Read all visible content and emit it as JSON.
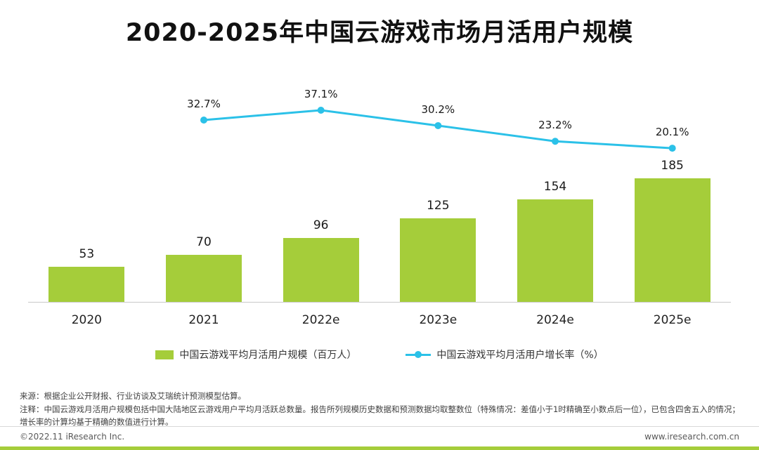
{
  "title": "2020-2025年中国云游戏市场月活用户规模",
  "chart_data": {
    "type": "bar+line",
    "categories": [
      "2020",
      "2021",
      "2022e",
      "2023e",
      "2024e",
      "2025e"
    ],
    "series": [
      {
        "name": "中国云游戏平均月活用户规模（百万人）",
        "type": "bar",
        "values": [
          53,
          70,
          96,
          125,
          154,
          185
        ],
        "color": "#a5cd3a"
      },
      {
        "name": "中国云游戏平均月活用户增长率（%）",
        "type": "line",
        "values": [
          null,
          32.7,
          37.1,
          30.2,
          23.2,
          20.1
        ],
        "point_labels": [
          "",
          "32.7%",
          "37.1%",
          "30.2%",
          "23.2%",
          "20.1%"
        ],
        "color": "#2bc1e8"
      }
    ],
    "bar_ylim": [
      0,
      200
    ],
    "line_ylim": [
      0,
      50
    ],
    "grid": false,
    "legend_position": "bottom"
  },
  "legend": {
    "bar_label": "中国云游戏平均月活用户规模（百万人）",
    "line_label": "中国云游戏平均月活用户增长率（%）"
  },
  "source": "来源：根据企业公开财报、行业访谈及艾瑞统计预测模型估算。",
  "note": "注释：中国云游戏月活用户规模包括中国大陆地区云游戏用户平均月活跃总数量。报告所列规模历史数据和预测数据均取整数位（特殊情况：差值小于1时精确至小数点后一位），已包含四舍五入的情况；增长率的计算均基于精确的数值进行计算。",
  "footer": {
    "copyright": "©2022.11 iResearch Inc.",
    "website": "www.iresearch.com.cn"
  }
}
